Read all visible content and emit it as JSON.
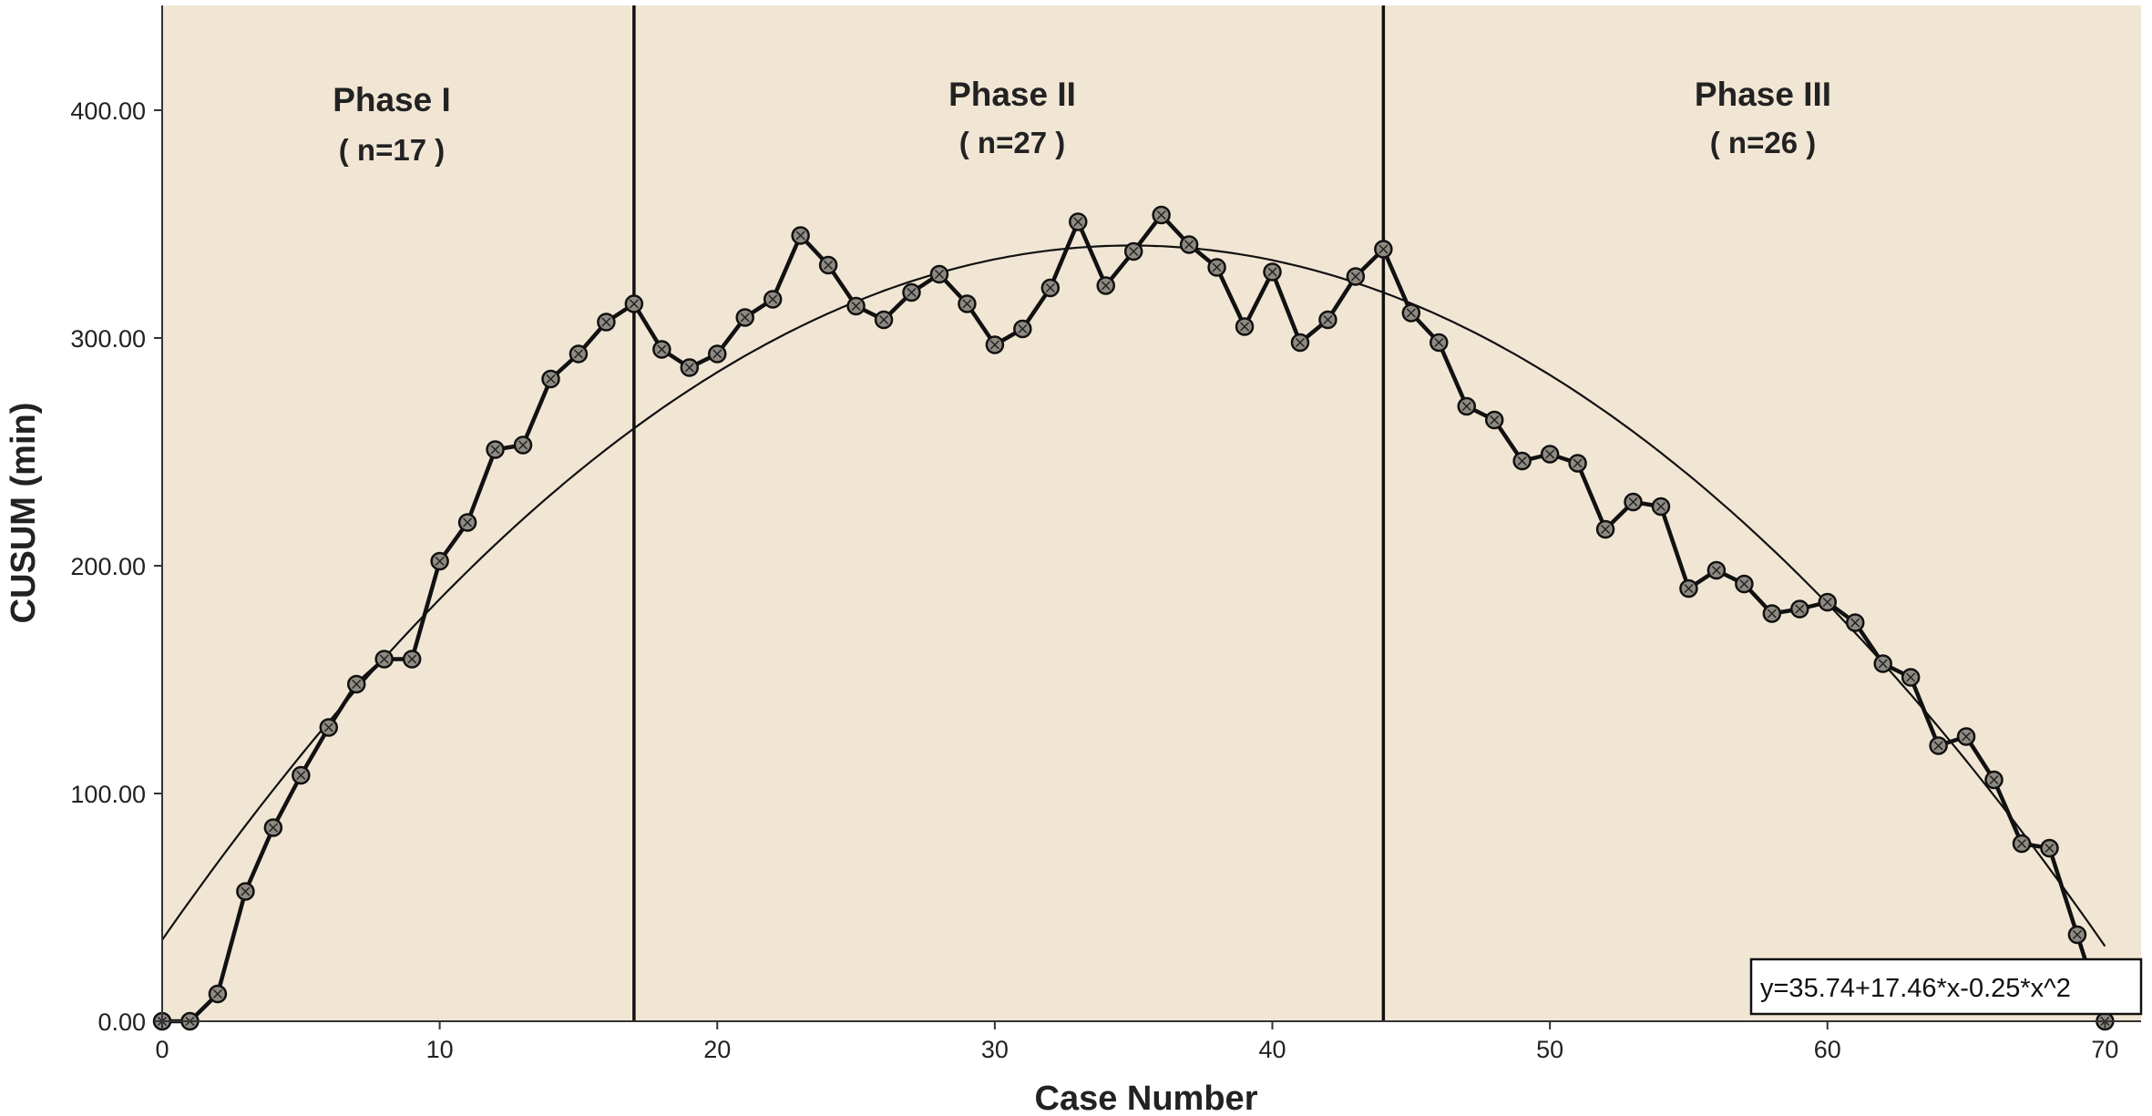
{
  "chart_data": {
    "type": "line",
    "title": "",
    "xlabel": "Case Number",
    "ylabel": "CUSUM  (min)",
    "xlim": [
      0,
      71
    ],
    "ylim": [
      0,
      400
    ],
    "xticks": [
      0,
      10,
      20,
      30,
      40,
      50,
      60,
      70
    ],
    "xtick_labels": [
      "0",
      "10",
      "20",
      "30",
      "40",
      "50",
      "60",
      "70"
    ],
    "yticks": [
      0,
      100,
      200,
      300,
      400
    ],
    "ytick_labels": [
      "0.00",
      "100.00",
      "200.00",
      "300.00",
      "400.00"
    ],
    "grid": false,
    "legend": "none",
    "background_color": "#f1e6d4",
    "line_color": "#111111",
    "marker_fill": "#8f8a82",
    "series": [
      {
        "values": [
          [
            0,
            0
          ],
          [
            1,
            0
          ],
          [
            2,
            12
          ],
          [
            3,
            57
          ],
          [
            4,
            85
          ],
          [
            5,
            108
          ],
          [
            6,
            129
          ],
          [
            7,
            148
          ],
          [
            8,
            159
          ],
          [
            9,
            159
          ],
          [
            10,
            202
          ],
          [
            11,
            219
          ],
          [
            12,
            251
          ],
          [
            13,
            253
          ],
          [
            14,
            282
          ],
          [
            15,
            293
          ],
          [
            16,
            307
          ],
          [
            17,
            315
          ],
          [
            18,
            295
          ],
          [
            19,
            287
          ],
          [
            20,
            293
          ],
          [
            21,
            309
          ],
          [
            22,
            317
          ],
          [
            23,
            345
          ],
          [
            24,
            332
          ],
          [
            25,
            314
          ],
          [
            26,
            308
          ],
          [
            27,
            320
          ],
          [
            28,
            328
          ],
          [
            29,
            315
          ],
          [
            30,
            297
          ],
          [
            31,
            304
          ],
          [
            32,
            322
          ],
          [
            33,
            351
          ],
          [
            34,
            323
          ],
          [
            35,
            338
          ],
          [
            36,
            354
          ],
          [
            37,
            341
          ],
          [
            38,
            331
          ],
          [
            39,
            305
          ],
          [
            40,
            329
          ],
          [
            41,
            298
          ],
          [
            42,
            308
          ],
          [
            43,
            327
          ],
          [
            44,
            339
          ],
          [
            45,
            311
          ],
          [
            46,
            298
          ],
          [
            47,
            270
          ],
          [
            48,
            264
          ],
          [
            49,
            246
          ],
          [
            50,
            249
          ],
          [
            51,
            245
          ],
          [
            52,
            216
          ],
          [
            53,
            228
          ],
          [
            54,
            226
          ],
          [
            55,
            190
          ],
          [
            56,
            198
          ],
          [
            57,
            192
          ],
          [
            58,
            179
          ],
          [
            59,
            181
          ],
          [
            60,
            184
          ],
          [
            61,
            175
          ],
          [
            62,
            157
          ],
          [
            63,
            151
          ],
          [
            64,
            121
          ],
          [
            65,
            125
          ],
          [
            66,
            106
          ],
          [
            67,
            78
          ],
          [
            68,
            76
          ],
          [
            69,
            38
          ],
          [
            70,
            0
          ]
        ]
      },
      {
        "type": "quadratic-fit",
        "equation": "y=35.74+17.46*x-0.25*x^2",
        "coefficients": [
          35.74,
          17.46,
          -0.25
        ]
      }
    ],
    "phase_boundaries": [
      17,
      44
    ],
    "annotations": [
      {
        "title": "Phase I",
        "n": "( n=17 )"
      },
      {
        "title": "Phase II",
        "n": "( n=27 )"
      },
      {
        "title": "Phase III",
        "n": "( n=26 )"
      }
    ]
  }
}
